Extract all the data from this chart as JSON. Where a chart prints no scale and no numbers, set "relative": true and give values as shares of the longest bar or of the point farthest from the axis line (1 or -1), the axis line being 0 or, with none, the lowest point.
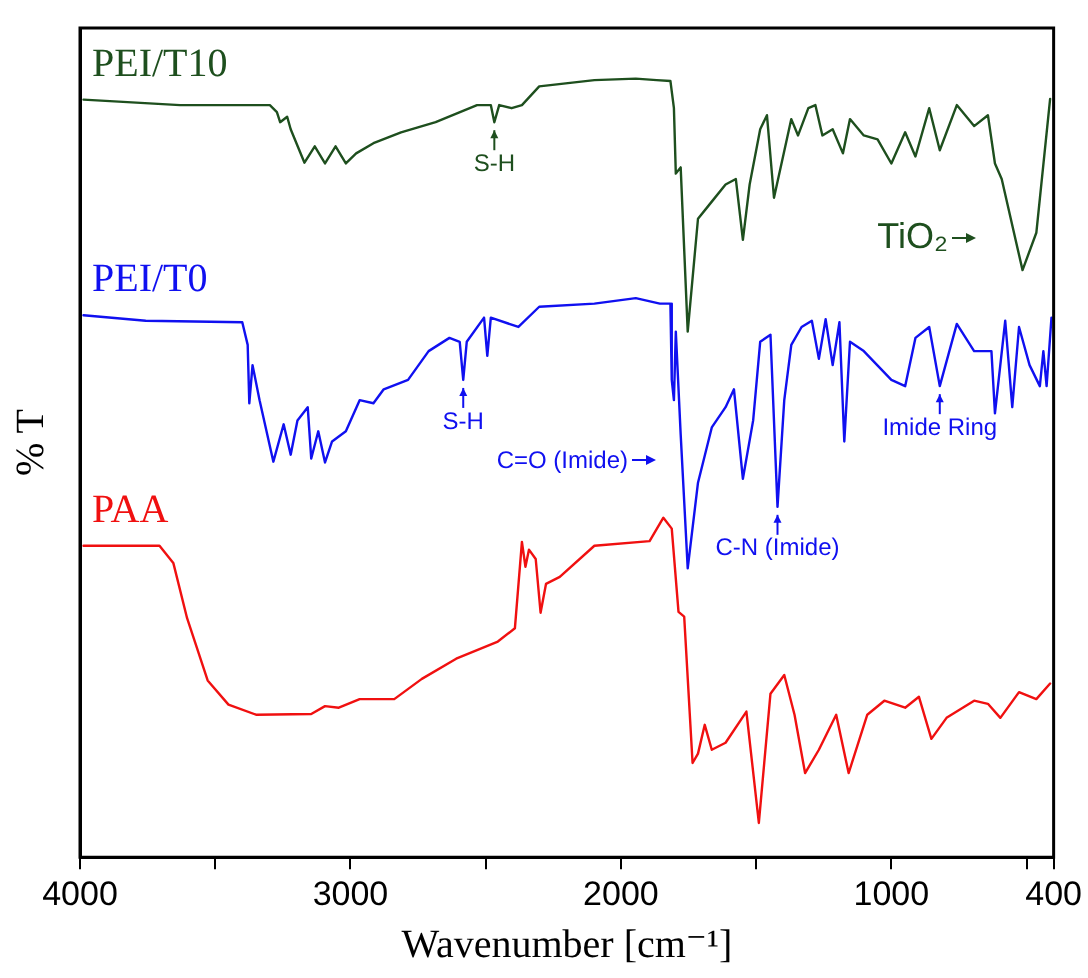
{
  "chart_data": {
    "type": "line",
    "relative": true,
    "xlabel": "Wavenumber [cm⁻¹]",
    "ylabel": "% T",
    "xlim": [
      4000,
      400
    ],
    "xticks": [
      4000,
      {
        "value": 3500,
        "label": null
      },
      3000,
      {
        "value": 2500,
        "label": null
      },
      2000,
      {
        "value": 1500,
        "label": null
      },
      1000,
      {
        "value": 500,
        "label": null
      },
      400
    ],
    "tick_labels": "x",
    "marker": "none",
    "line_style": "solid",
    "series": [
      {
        "name": "PEI/T10",
        "color": "#1e4f1e",
        "x": [
          3987,
          3630,
          3298,
          3272,
          3260,
          3234,
          3221,
          3170,
          3132,
          3094,
          3055,
          3017,
          2979,
          2915,
          2813,
          2685,
          2532,
          2481,
          2468,
          2450,
          2404,
          2366,
          2302,
          2098,
          1945,
          1868,
          1817,
          1804,
          1797,
          1779,
          1753,
          1715,
          1664,
          1613,
          1575,
          1549,
          1524,
          1485,
          1460,
          1434,
          1370,
          1345,
          1307,
          1281,
          1255,
          1217,
          1179,
          1153,
          1102,
          1051,
          1000,
          949,
          911,
          860,
          821,
          758,
          694,
          643,
          617,
          592,
          515,
          464,
          413
        ],
        "values": [
          0.973,
          0.966,
          0.966,
          0.957,
          0.944,
          0.951,
          0.935,
          0.892,
          0.913,
          0.891,
          0.913,
          0.891,
          0.904,
          0.917,
          0.931,
          0.944,
          0.966,
          0.966,
          0.944,
          0.966,
          0.962,
          0.966,
          0.99,
          0.998,
          1,
          0.998,
          0.997,
          0.962,
          0.878,
          0.886,
          0.675,
          0.82,
          0.842,
          0.864,
          0.871,
          0.793,
          0.864,
          0.935,
          0.953,
          0.847,
          0.948,
          0.927,
          0.962,
          0.966,
          0.927,
          0.935,
          0.904,
          0.948,
          0.927,
          0.922,
          0.891,
          0.931,
          0.9,
          0.962,
          0.908,
          0.966,
          0.939,
          0.953,
          0.891,
          0.871,
          0.754,
          0.802,
          0.974
        ]
      },
      {
        "name": "PEI/T0",
        "color": "#1010f0",
        "x": [
          3987,
          3757,
          3400,
          3380,
          3374,
          3362,
          3336,
          3285,
          3247,
          3221,
          3196,
          3158,
          3145,
          3119,
          3094,
          3068,
          3017,
          2966,
          2915,
          2877,
          2787,
          2711,
          2634,
          2596,
          2583,
          2570,
          2506,
          2494,
          2481,
          2379,
          2302,
          2098,
          1945,
          1856,
          1817,
          1812,
          1804,
          1797,
          1779,
          1753,
          1715,
          1664,
          1613,
          1582,
          1549,
          1511,
          1485,
          1447,
          1421,
          1396,
          1370,
          1332,
          1294,
          1268,
          1243,
          1217,
          1192,
          1174,
          1153,
          1102,
          1000,
          949,
          911,
          860,
          821,
          758,
          694,
          630,
          617,
          579,
          553,
          528,
          489,
          451,
          438,
          426,
          408
        ],
        "values": [
          0.696,
          0.689,
          0.687,
          0.658,
          0.583,
          0.632,
          0.587,
          0.508,
          0.556,
          0.517,
          0.561,
          0.578,
          0.512,
          0.547,
          0.507,
          0.534,
          0.547,
          0.587,
          0.583,
          0.601,
          0.613,
          0.65,
          0.667,
          0.662,
          0.613,
          0.662,
          0.693,
          0.644,
          0.693,
          0.681,
          0.707,
          0.711,
          0.718,
          0.711,
          0.711,
          0.613,
          0.587,
          0.675,
          0.543,
          0.371,
          0.481,
          0.552,
          0.578,
          0.601,
          0.486,
          0.561,
          0.662,
          0.671,
          0.45,
          0.587,
          0.658,
          0.681,
          0.689,
          0.64,
          0.691,
          0.632,
          0.687,
          0.534,
          0.662,
          0.65,
          0.613,
          0.605,
          0.667,
          0.681,
          0.605,
          0.685,
          0.65,
          0.65,
          0.57,
          0.689,
          0.578,
          0.681,
          0.632,
          0.605,
          0.65,
          0.605,
          0.693
        ]
      },
      {
        "name": "PAA",
        "color": "#f01010",
        "x": [
          3987,
          3706,
          3655,
          3604,
          3528,
          3451,
          3349,
          3145,
          3094,
          3043,
          2966,
          2838,
          2736,
          2609,
          2455,
          2392,
          2366,
          2353,
          2340,
          2315,
          2297,
          2277,
          2226,
          2098,
          1894,
          1843,
          1812,
          1787,
          1766,
          1735,
          1715,
          1690,
          1664,
          1613,
          1536,
          1490,
          1447,
          1396,
          1358,
          1319,
          1268,
          1204,
          1158,
          1089,
          1026,
          949,
          898,
          852,
          796,
          694,
          643,
          597,
          528,
          464,
          413
        ],
        "values": [
          0.4,
          0.4,
          0.378,
          0.307,
          0.227,
          0.196,
          0.183,
          0.184,
          0.194,
          0.192,
          0.203,
          0.203,
          0.229,
          0.255,
          0.277,
          0.294,
          0.405,
          0.373,
          0.395,
          0.383,
          0.314,
          0.351,
          0.36,
          0.4,
          0.406,
          0.436,
          0.422,
          0.315,
          0.309,
          0.121,
          0.133,
          0.17,
          0.138,
          0.147,
          0.187,
          0.044,
          0.21,
          0.234,
          0.183,
          0.108,
          0.138,
          0.183,
          0.108,
          0.183,
          0.201,
          0.192,
          0.206,
          0.152,
          0.179,
          0.201,
          0.197,
          0.179,
          0.212,
          0.203,
          0.223
        ]
      }
    ],
    "annotations": [
      {
        "text": "S-H",
        "x": 2468,
        "y": 0.944
      },
      "TiO₂",
      {
        "text": "S-H",
        "x": 2583,
        "y": 0.613
      },
      "C=O (Imide)",
      {
        "text": "C-N (Imide)",
        "x": 1421,
        "y": 0.45
      },
      {
        "text": "Imide Ring",
        "x": 821,
        "y": 0.605
      }
    ]
  }
}
